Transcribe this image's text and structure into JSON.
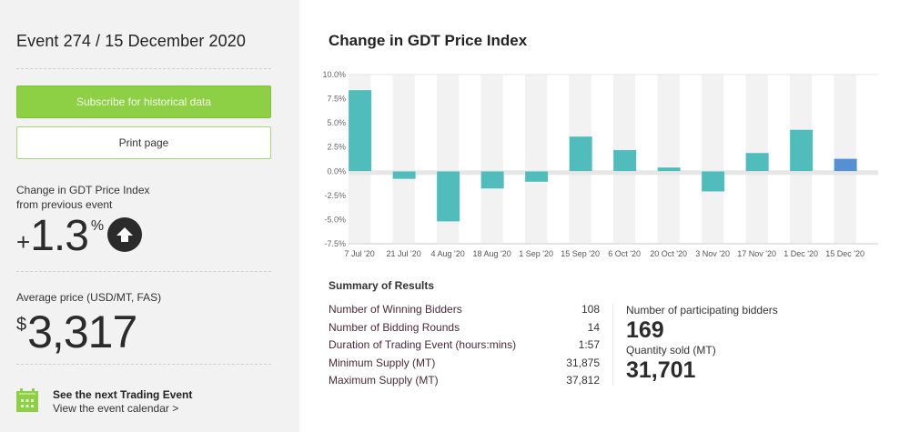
{
  "sidebar": {
    "event_title": "Event 274 / 15 December 2020",
    "subscribe_label": "Subscribe for historical data",
    "print_label": "Print page",
    "change_label_line1": "Change in GDT Price Index",
    "change_label_line2": "from previous event",
    "change_sign": "+",
    "change_value": "1.3",
    "change_unit": "%",
    "change_direction_icon": "arrow-up-circle-icon",
    "avg_price_label": "Average price (USD/MT, FAS)",
    "avg_price_currency": "$",
    "avg_price_value": "3,317",
    "next_event_icon": "calendar-icon",
    "next_event_title": "See the next Trading Event",
    "next_event_link": "View the event calendar >"
  },
  "colors": {
    "sidebar_bg": "#f2f2f2",
    "subscribe_green": "#8dcf45",
    "bar_teal": "#50bcbc",
    "bar_current_blue": "#5590d3",
    "text_dark": "#2b2b2b"
  },
  "chart_data": {
    "type": "bar",
    "title": "Change in GDT Price Index",
    "xlabel": "",
    "ylabel": "",
    "ylim": [
      -7.5,
      10.0
    ],
    "yticks": [
      "10.0%",
      "7.5%",
      "5.0%",
      "2.5%",
      "0.0%",
      "-2.5%",
      "-5.0%",
      "-7.5%"
    ],
    "ytick_values": [
      10.0,
      7.5,
      5.0,
      2.5,
      0.0,
      -2.5,
      -5.0,
      -7.5
    ],
    "categories": [
      "7 Jul '20",
      "21 Jul '20",
      "4 Aug '20",
      "18 Aug '20",
      "1 Sep '20",
      "15 Sep '20",
      "6 Oct '20",
      "20 Oct '20",
      "3 Nov '20",
      "17 Nov '20",
      "1 Dec '20",
      "15 Dec '20"
    ],
    "values": [
      8.4,
      -0.8,
      -5.2,
      -1.8,
      -1.1,
      3.6,
      2.2,
      0.4,
      -2.1,
      1.9,
      4.3,
      1.3
    ],
    "highlight_index": 11,
    "grid": false,
    "legend": "none"
  },
  "summary": {
    "title": "Summary of Results",
    "rows": [
      {
        "label": "Number of Winning Bidders",
        "value": "108"
      },
      {
        "label": "Number of Bidding Rounds",
        "value": "14"
      },
      {
        "label": "Duration of Trading Event (hours:mins)",
        "value": "1:57"
      },
      {
        "label": "Minimum Supply (MT)",
        "value": "31,875"
      },
      {
        "label": "Maximum Supply (MT)",
        "value": "37,812"
      }
    ],
    "participating_label": "Number of participating bidders",
    "participating_value": "169",
    "quantity_label": "Quantity sold (MT)",
    "quantity_value": "31,701"
  }
}
